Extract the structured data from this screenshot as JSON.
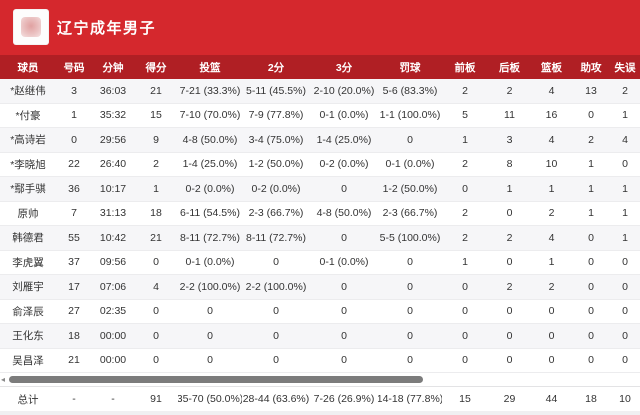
{
  "header": {
    "title": "辽宁成年男子",
    "logo_name": "team-emblem"
  },
  "colors": {
    "banner_red": "#d5282d",
    "table_header_red": "#b01f24",
    "row_alt_gray": "#f6f6f8",
    "scrollbar_thumb": "#7c7c7c",
    "text": "#333333"
  },
  "icons": {
    "scroll_left_arrow": "◂"
  },
  "table": {
    "columns": [
      "球员",
      "号码",
      "分钟",
      "得分",
      "投篮",
      "2分",
      "3分",
      "罚球",
      "前板",
      "后板",
      "篮板",
      "助攻",
      "失误"
    ],
    "rows": [
      [
        "*赵继伟",
        "3",
        "36:03",
        "21",
        "7-21 (33.3%)",
        "5-11 (45.5%)",
        "2-10 (20.0%)",
        "5-6 (83.3%)",
        "2",
        "2",
        "4",
        "13",
        "2"
      ],
      [
        "*付豪",
        "1",
        "35:32",
        "15",
        "7-10 (70.0%)",
        "7-9 (77.8%)",
        "0-1 (0.0%)",
        "1-1 (100.0%)",
        "5",
        "11",
        "16",
        "0",
        "1"
      ],
      [
        "*高诗岩",
        "0",
        "29:56",
        "9",
        "4-8 (50.0%)",
        "3-4 (75.0%)",
        "1-4 (25.0%)",
        "0",
        "1",
        "3",
        "4",
        "2",
        "4"
      ],
      [
        "*李晓旭",
        "22",
        "26:40",
        "2",
        "1-4 (25.0%)",
        "1-2 (50.0%)",
        "0-2 (0.0%)",
        "0-1 (0.0%)",
        "2",
        "8",
        "10",
        "1",
        "0"
      ],
      [
        "*鄢手骐",
        "36",
        "10:17",
        "1",
        "0-2 (0.0%)",
        "0-2 (0.0%)",
        "0",
        "1-2 (50.0%)",
        "0",
        "1",
        "1",
        "1",
        "1"
      ],
      [
        "原帅",
        "7",
        "31:13",
        "18",
        "6-11 (54.5%)",
        "2-3 (66.7%)",
        "4-8 (50.0%)",
        "2-3 (66.7%)",
        "2",
        "0",
        "2",
        "1",
        "1"
      ],
      [
        "韩德君",
        "55",
        "10:42",
        "21",
        "8-11 (72.7%)",
        "8-11 (72.7%)",
        "0",
        "5-5 (100.0%)",
        "2",
        "2",
        "4",
        "0",
        "1"
      ],
      [
        "李虎翼",
        "37",
        "09:56",
        "0",
        "0-1 (0.0%)",
        "0",
        "0-1 (0.0%)",
        "0",
        "1",
        "0",
        "1",
        "0",
        "0"
      ],
      [
        "刘雁宇",
        "17",
        "07:06",
        "4",
        "2-2 (100.0%)",
        "2-2 (100.0%)",
        "0",
        "0",
        "0",
        "2",
        "2",
        "0",
        "0"
      ],
      [
        "俞泽辰",
        "27",
        "02:35",
        "0",
        "0",
        "0",
        "0",
        "0",
        "0",
        "0",
        "0",
        "0",
        "0"
      ],
      [
        "王化东",
        "18",
        "00:00",
        "0",
        "0",
        "0",
        "0",
        "0",
        "0",
        "0",
        "0",
        "0",
        "0"
      ],
      [
        "吴昌泽",
        "21",
        "00:00",
        "0",
        "0",
        "0",
        "0",
        "0",
        "0",
        "0",
        "0",
        "0",
        "0"
      ]
    ],
    "total": [
      "总计",
      "-",
      "-",
      "91",
      "35-70 (50.0%)",
      "28-44 (63.6%)",
      "7-26 (26.9%)",
      "14-18 (77.8%)",
      "15",
      "29",
      "44",
      "18",
      "10"
    ]
  }
}
